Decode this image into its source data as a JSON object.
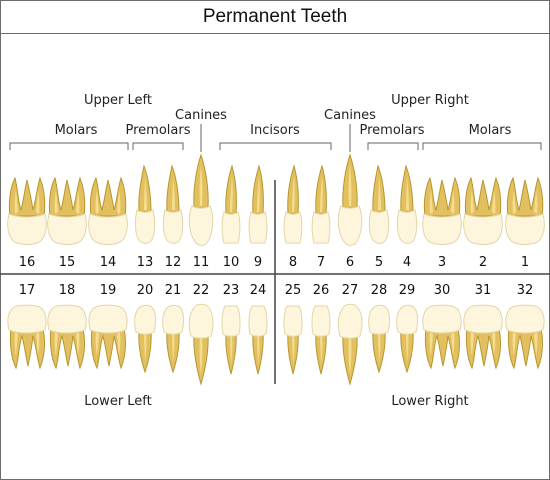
{
  "title": "Permanent Teeth",
  "labels": {
    "upper_left": "Upper Left",
    "upper_right": "Upper Right",
    "lower_left": "Lower Left",
    "lower_right": "Lower Right",
    "canines_left": "Canines",
    "canines_right": "Canines",
    "molars_left": "Molars",
    "premolars_left": "Premolars",
    "incisors": "Incisors",
    "premolars_right": "Premolars",
    "molars_right": "Molars"
  },
  "upper_teeth": [
    {
      "number": "16",
      "type": "molar"
    },
    {
      "number": "15",
      "type": "molar"
    },
    {
      "number": "14",
      "type": "molar"
    },
    {
      "number": "13",
      "type": "premolar"
    },
    {
      "number": "12",
      "type": "premolar"
    },
    {
      "number": "11",
      "type": "canine"
    },
    {
      "number": "10",
      "type": "incisor"
    },
    {
      "number": "9",
      "type": "incisor"
    },
    {
      "number": "8",
      "type": "incisor"
    },
    {
      "number": "7",
      "type": "incisor"
    },
    {
      "number": "6",
      "type": "canine"
    },
    {
      "number": "5",
      "type": "premolar"
    },
    {
      "number": "4",
      "type": "premolar"
    },
    {
      "number": "3",
      "type": "molar"
    },
    {
      "number": "2",
      "type": "molar"
    },
    {
      "number": "1",
      "type": "molar"
    }
  ],
  "lower_teeth": [
    {
      "number": "17",
      "type": "molar"
    },
    {
      "number": "18",
      "type": "molar"
    },
    {
      "number": "19",
      "type": "molar"
    },
    {
      "number": "20",
      "type": "premolar"
    },
    {
      "number": "21",
      "type": "premolar"
    },
    {
      "number": "22",
      "type": "canine"
    },
    {
      "number": "23",
      "type": "incisor"
    },
    {
      "number": "24",
      "type": "incisor"
    },
    {
      "number": "25",
      "type": "incisor"
    },
    {
      "number": "26",
      "type": "incisor"
    },
    {
      "number": "27",
      "type": "canine"
    },
    {
      "number": "28",
      "type": "premolar"
    },
    {
      "number": "29",
      "type": "premolar"
    },
    {
      "number": "30",
      "type": "molar"
    },
    {
      "number": "31",
      "type": "molar"
    },
    {
      "number": "32",
      "type": "molar"
    }
  ],
  "colors": {
    "crown": "#fdf5dc",
    "root": "#e2c060",
    "canal": "#f4dd8e"
  }
}
